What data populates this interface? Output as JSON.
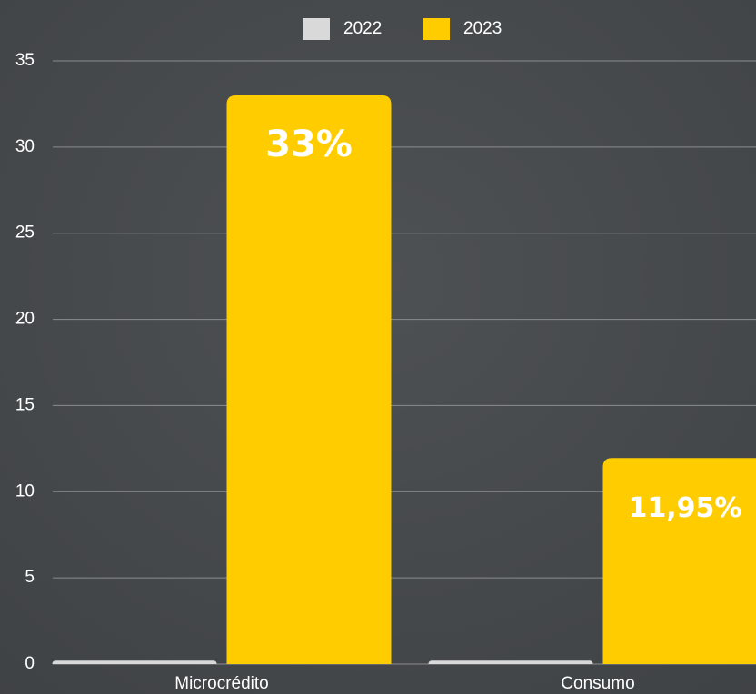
{
  "chart_data": {
    "type": "bar",
    "categories": [
      "Microcrédito",
      "Consumo"
    ],
    "series": [
      {
        "name": "2022",
        "color": "#d9d9d9",
        "values": [
          0.2,
          0.2
        ]
      },
      {
        "name": "2023",
        "color": "#ffcc00",
        "values": [
          33,
          11.95
        ],
        "value_labels": [
          "33%",
          "11,95%"
        ]
      }
    ],
    "ylim": [
      0,
      35
    ],
    "yticks": [
      0,
      5,
      10,
      15,
      20,
      25,
      30,
      35
    ],
    "grid": true,
    "legend": "top"
  }
}
